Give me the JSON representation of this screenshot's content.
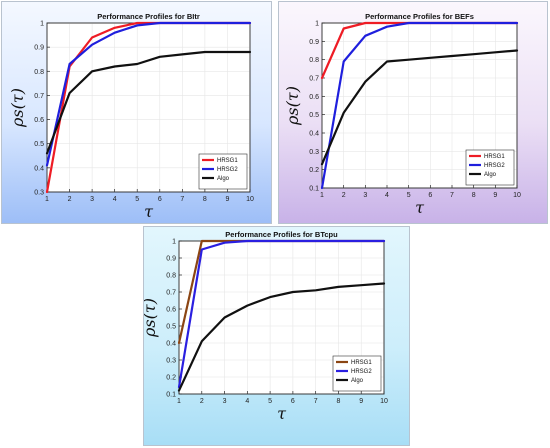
{
  "chart_data": [
    {
      "type": "line",
      "title": "Performance Profiles for BItr",
      "xlabel": "τ",
      "ylabel": "ρs(τ)",
      "xlim": [
        1,
        10
      ],
      "ylim": [
        0.3,
        1
      ],
      "xticks": [
        "1",
        "2",
        "3",
        "4",
        "5",
        "6",
        "7",
        "8",
        "9",
        "10"
      ],
      "yticks": [
        "0.3",
        "0.4",
        "0.5",
        "0.6",
        "0.7",
        "0.8",
        "0.9",
        "1"
      ],
      "grid": true,
      "legend_position": "bottom-right",
      "background": {
        "top": "#f4f8ff",
        "bottom": "#9dbef7"
      },
      "x": [
        1,
        2,
        3,
        4,
        5,
        6,
        7,
        8,
        9,
        10
      ],
      "series": [
        {
          "name": "HRSG1",
          "color": "#ee1c25",
          "values": [
            0.3,
            0.82,
            0.94,
            0.98,
            1.0,
            1.0,
            1.0,
            1.0,
            1.0,
            1.0
          ]
        },
        {
          "name": "HRSG2",
          "color": "#1f1fdd",
          "values": [
            0.41,
            0.83,
            0.91,
            0.96,
            0.99,
            1.0,
            1.0,
            1.0,
            1.0,
            1.0
          ]
        },
        {
          "name": "Algo",
          "color": "#111111",
          "values": [
            0.46,
            0.71,
            0.8,
            0.82,
            0.83,
            0.86,
            0.87,
            0.88,
            0.88,
            0.88
          ]
        }
      ]
    },
    {
      "type": "line",
      "title": "Performance Profiles for BEFs",
      "xlabel": "τ",
      "ylabel": "ρs(τ)",
      "xlim": [
        1,
        10
      ],
      "ylim": [
        0.1,
        1
      ],
      "xticks": [
        "1",
        "2",
        "3",
        "4",
        "5",
        "6",
        "7",
        "8",
        "9",
        "10"
      ],
      "yticks": [
        "0.1",
        "0.2",
        "0.3",
        "0.4",
        "0.5",
        "0.6",
        "0.7",
        "0.8",
        "0.9",
        "1"
      ],
      "grid": true,
      "legend_position": "bottom-right",
      "background": {
        "top": "#fbf7fd",
        "bottom": "#c8b2e8"
      },
      "x": [
        1,
        2,
        3,
        4,
        5,
        6,
        7,
        8,
        9,
        10
      ],
      "series": [
        {
          "name": "HRSG1",
          "color": "#ee1c25",
          "values": [
            0.7,
            0.97,
            1.0,
            1.0,
            1.0,
            1.0,
            1.0,
            1.0,
            1.0,
            1.0
          ]
        },
        {
          "name": "HRSG2",
          "color": "#1f1fdd",
          "values": [
            0.1,
            0.79,
            0.93,
            0.98,
            1.0,
            1.0,
            1.0,
            1.0,
            1.0,
            1.0
          ]
        },
        {
          "name": "Algo",
          "color": "#111111",
          "values": [
            0.23,
            0.51,
            0.68,
            0.79,
            0.8,
            0.81,
            0.82,
            0.83,
            0.84,
            0.85
          ]
        }
      ]
    },
    {
      "type": "line",
      "title": "Performance Profiles for BTcpu",
      "xlabel": "τ",
      "ylabel": "ρs(τ)",
      "xlim": [
        1,
        10
      ],
      "ylim": [
        0.1,
        1
      ],
      "xticks": [
        "1",
        "2",
        "3",
        "4",
        "5",
        "6",
        "7",
        "8",
        "9",
        "10"
      ],
      "yticks": [
        "0.1",
        "0.2",
        "0.3",
        "0.4",
        "0.5",
        "0.6",
        "0.7",
        "0.8",
        "0.9",
        "1"
      ],
      "grid": true,
      "legend_position": "bottom-right",
      "background": {
        "top": "#e2f6fd",
        "bottom": "#a8def6"
      },
      "x": [
        1,
        2,
        3,
        4,
        5,
        6,
        7,
        8,
        9,
        10
      ],
      "series": [
        {
          "name": "HRSG1",
          "color": "#8b4513",
          "values": [
            0.4,
            1.0,
            1.0,
            1.0,
            1.0,
            1.0,
            1.0,
            1.0,
            1.0,
            1.0
          ]
        },
        {
          "name": "HRSG2",
          "color": "#2a1fe0",
          "values": [
            0.14,
            0.95,
            0.99,
            1.0,
            1.0,
            1.0,
            1.0,
            1.0,
            1.0,
            1.0
          ]
        },
        {
          "name": "Algo",
          "color": "#111111",
          "values": [
            0.12,
            0.41,
            0.55,
            0.62,
            0.67,
            0.7,
            0.71,
            0.73,
            0.74,
            0.75
          ]
        }
      ]
    }
  ]
}
